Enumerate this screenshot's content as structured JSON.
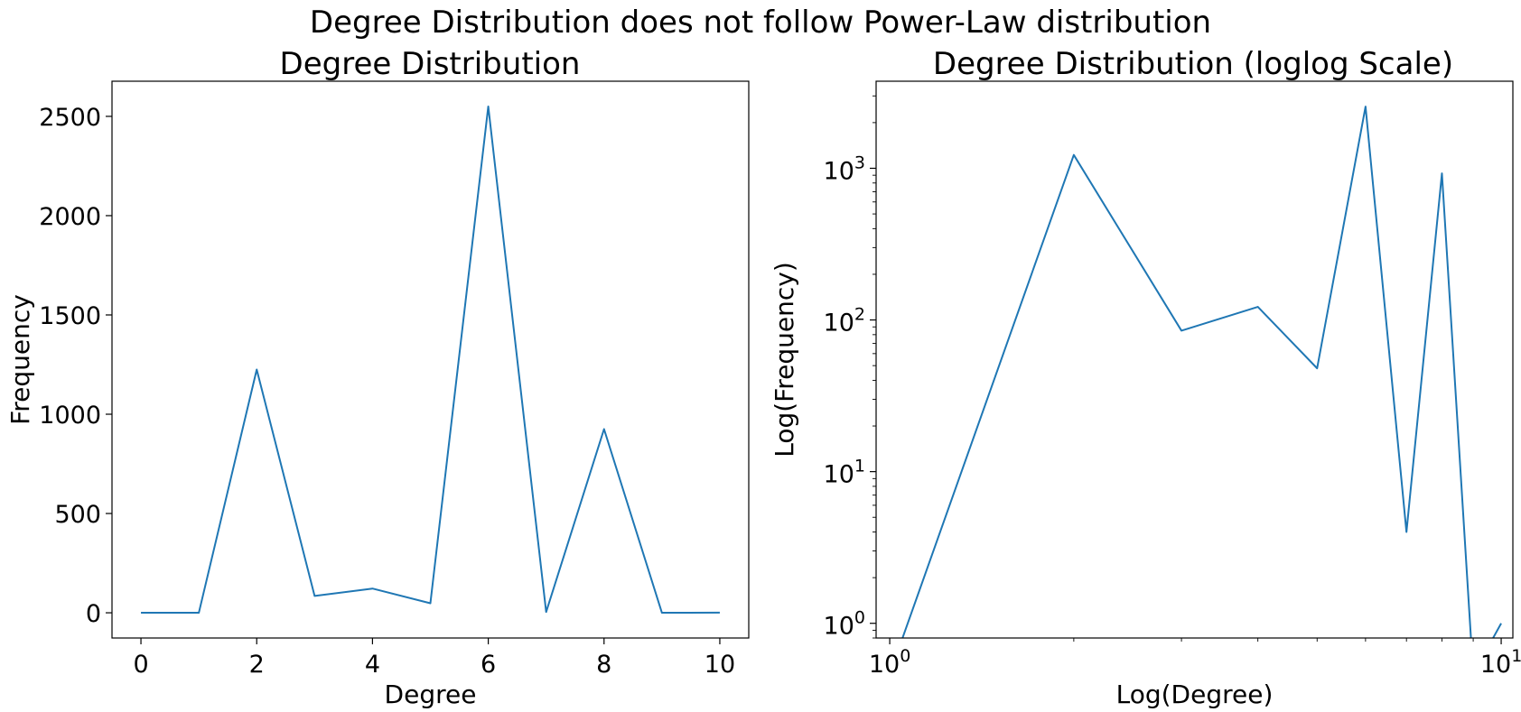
{
  "figure": {
    "suptitle": "Degree Distribution does not follow Power-Law distribution"
  },
  "colors": {
    "series": "#1f77b4",
    "background": "#ffffff",
    "text": "#000000"
  },
  "chart_data": [
    {
      "type": "line",
      "title": "Degree Distribution",
      "xlabel": "Degree",
      "ylabel": "Frequency",
      "xscale": "linear",
      "yscale": "linear",
      "xlim": [
        -0.5,
        10.5
      ],
      "ylim": [
        -127,
        2677
      ],
      "xticks": [
        0,
        2,
        4,
        6,
        8,
        10
      ],
      "xtick_labels": [
        "0",
        "2",
        "4",
        "6",
        "8",
        "10"
      ],
      "yticks": [
        0,
        500,
        1000,
        1500,
        2000,
        2500
      ],
      "ytick_labels": [
        "0",
        "500",
        "1000",
        "1500",
        "2000",
        "2500"
      ],
      "grid": false,
      "series": [
        {
          "x": [
            0,
            1,
            2,
            3,
            4,
            5,
            6,
            7,
            8,
            9,
            10
          ],
          "values": [
            0,
            0,
            1225,
            85,
            122,
            48,
            2550,
            4,
            925,
            0,
            1
          ]
        }
      ]
    },
    {
      "type": "line",
      "title": "Degree Distribution (loglog Scale)",
      "xlabel": "Log(Degree)",
      "ylabel": "Log(Frequency)",
      "xscale": "log",
      "yscale": "log",
      "xlim": [
        0.95,
        10.45
      ],
      "ylim": [
        0.8,
        3750
      ],
      "xticks": [
        1,
        10
      ],
      "xtick_labels": [
        {
          "base": "10",
          "exp": "0"
        },
        {
          "base": "10",
          "exp": "1"
        }
      ],
      "yticks": [
        1,
        10,
        100,
        1000
      ],
      "ytick_labels": [
        {
          "base": "10",
          "exp": "0"
        },
        {
          "base": "10",
          "exp": "1"
        },
        {
          "base": "10",
          "exp": "2"
        },
        {
          "base": "10",
          "exp": "3"
        }
      ],
      "grid": false,
      "series": [
        {
          "x": [
            0,
            1,
            2,
            3,
            4,
            5,
            6,
            7,
            8,
            9,
            10
          ],
          "values": [
            0,
            0,
            1225,
            85,
            122,
            48,
            2550,
            4,
            925,
            0,
            1
          ]
        }
      ]
    }
  ]
}
